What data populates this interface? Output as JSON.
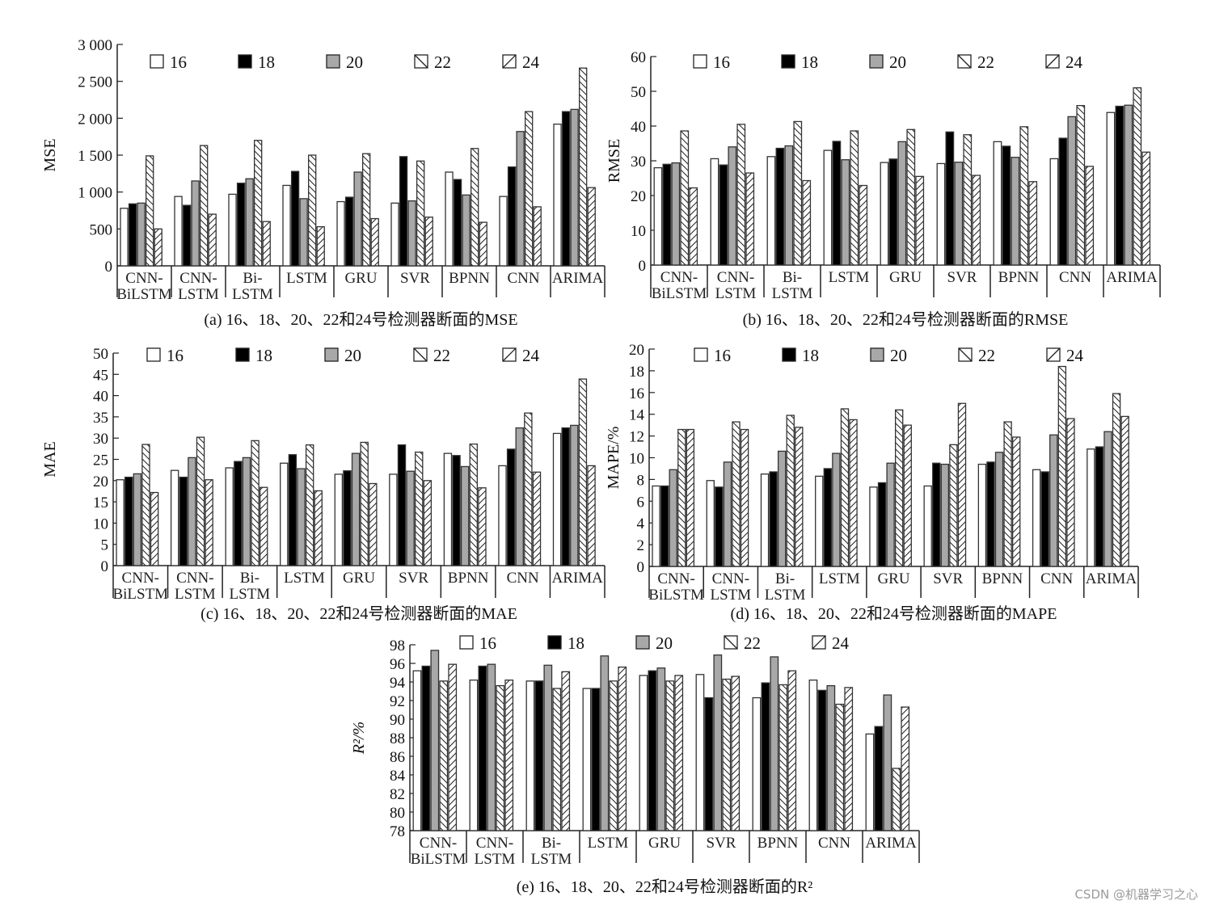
{
  "legend": [
    "16",
    "18",
    "20",
    "22",
    "24"
  ],
  "watermark": "CSDN @机器学习之心",
  "styles": {
    "fills": [
      "#ffffff",
      "#000000",
      "#a8a8a8",
      "hatch-back",
      "hatch-fwd"
    ],
    "stroke": "#333333"
  },
  "chart_data": [
    {
      "id": "a",
      "type": "bar",
      "title": "(a) 16、18、20、22和24号检测器断面的MSE",
      "ylabel": "MSE",
      "ylim": [
        0,
        3000
      ],
      "yticks": [
        0,
        500,
        1000,
        1500,
        2000,
        2500,
        3000
      ],
      "ytick_labels": [
        "0",
        "500",
        "1 000",
        "1 500",
        "2 000",
        "2 500",
        "3 000"
      ],
      "categories": [
        "CNN-\nBiLSTM",
        "CNN-\nLSTM",
        "Bi-\nLSTM",
        "LSTM",
        "GRU",
        "SVR",
        "BPNN",
        "CNN",
        "ARIMA"
      ],
      "series": [
        {
          "name": "16",
          "values": [
            780,
            940,
            970,
            1090,
            870,
            850,
            1270,
            940,
            1920
          ]
        },
        {
          "name": "18",
          "values": [
            840,
            820,
            1120,
            1280,
            930,
            1480,
            1170,
            1340,
            2090
          ]
        },
        {
          "name": "20",
          "values": [
            850,
            1150,
            1180,
            910,
            1270,
            880,
            960,
            1820,
            2120
          ]
        },
        {
          "name": "22",
          "values": [
            1490,
            1630,
            1700,
            1500,
            1520,
            1420,
            1590,
            2090,
            2680
          ]
        },
        {
          "name": "24",
          "values": [
            500,
            700,
            600,
            530,
            640,
            660,
            590,
            800,
            1060
          ]
        }
      ]
    },
    {
      "id": "b",
      "type": "bar",
      "title": "(b) 16、18、20、22和24号检测器断面的RMSE",
      "ylabel": "RMSE",
      "ylim": [
        0,
        60
      ],
      "yticks": [
        0,
        10,
        20,
        30,
        40,
        50,
        60
      ],
      "ytick_labels": [
        "0",
        "10",
        "20",
        "30",
        "40",
        "50",
        "60"
      ],
      "categories": [
        "CNN-\nBiLSTM",
        "CNN-\nLSTM",
        "Bi-\nLSTM",
        "LSTM",
        "GRU",
        "SVR",
        "BPNN",
        "CNN",
        "ARIMA"
      ],
      "series": [
        {
          "name": "16",
          "values": [
            28,
            30.6,
            31.2,
            33,
            29.5,
            29.2,
            35.5,
            30.6,
            43.9
          ]
        },
        {
          "name": "18",
          "values": [
            29,
            28.8,
            33.6,
            35.6,
            30.5,
            38.3,
            34.2,
            36.5,
            45.7
          ]
        },
        {
          "name": "20",
          "values": [
            29.4,
            34,
            34.3,
            30.3,
            35.5,
            29.6,
            31,
            42.7,
            46
          ]
        },
        {
          "name": "22",
          "values": [
            38.6,
            40.5,
            41.3,
            38.6,
            39,
            37.5,
            39.8,
            45.9,
            51
          ]
        },
        {
          "name": "24",
          "values": [
            22.2,
            26.5,
            24.3,
            22.9,
            25.5,
            25.8,
            24,
            28.4,
            32.5
          ]
        }
      ]
    },
    {
      "id": "c",
      "type": "bar",
      "title": "(c) 16、18、20、22和24号检测器断面的MAE",
      "ylabel": "MAE",
      "ylim": [
        0,
        50
      ],
      "yticks": [
        0,
        5,
        10,
        15,
        20,
        25,
        30,
        35,
        40,
        45,
        50
      ],
      "ytick_labels": [
        "0",
        "5",
        "10",
        "15",
        "20",
        "25",
        "30",
        "35",
        "40",
        "45",
        "50"
      ],
      "categories": [
        "CNN-\nBiLSTM",
        "CNN-\nLSTM",
        "Bi-\nLSTM",
        "LSTM",
        "GRU",
        "SVR",
        "BPNN",
        "CNN",
        "ARIMA"
      ],
      "series": [
        {
          "name": "16",
          "values": [
            20.2,
            22.4,
            23,
            24.1,
            21.5,
            21.5,
            26.4,
            23.5,
            31.1
          ]
        },
        {
          "name": "18",
          "values": [
            20.8,
            20.8,
            24.5,
            26.1,
            22.3,
            28.4,
            25.9,
            27.4,
            32.4
          ]
        },
        {
          "name": "20",
          "values": [
            21.6,
            25.4,
            25.4,
            22.8,
            26.4,
            22.2,
            23.3,
            32.4,
            33
          ]
        },
        {
          "name": "22",
          "values": [
            28.5,
            30.2,
            29.4,
            28.4,
            29,
            26.7,
            28.6,
            35.9,
            43.9
          ]
        },
        {
          "name": "24",
          "values": [
            17.2,
            20.2,
            18.4,
            17.6,
            19.3,
            20,
            18.3,
            22,
            23.5
          ]
        }
      ]
    },
    {
      "id": "d",
      "type": "bar",
      "title": "(d) 16、18、20、22和24号检测器断面的MAPE",
      "ylabel": "MAPE/%",
      "ylim": [
        0,
        20
      ],
      "yticks": [
        0,
        2,
        4,
        6,
        8,
        10,
        12,
        14,
        16,
        18,
        20
      ],
      "ytick_labels": [
        "0",
        "2",
        "4",
        "6",
        "8",
        "10",
        "12",
        "14",
        "16",
        "18",
        "20"
      ],
      "categories": [
        "CNN-\nBiLSTM",
        "CNN-\nLSTM",
        "Bi-\nLSTM",
        "LSTM",
        "GRU",
        "SVR",
        "BPNN",
        "CNN",
        "ARIMA"
      ],
      "series": [
        {
          "name": "16",
          "values": [
            7.4,
            7.9,
            8.5,
            8.3,
            7.3,
            7.4,
            9.4,
            8.9,
            10.8
          ]
        },
        {
          "name": "18",
          "values": [
            7.4,
            7.3,
            8.7,
            9,
            7.7,
            9.5,
            9.6,
            8.7,
            11
          ]
        },
        {
          "name": "20",
          "values": [
            8.9,
            9.6,
            10.6,
            10.4,
            9.5,
            9.4,
            10.5,
            12.1,
            12.4
          ]
        },
        {
          "name": "22",
          "values": [
            12.6,
            13.3,
            13.9,
            14.5,
            14.4,
            11.2,
            13.3,
            18.4,
            15.9
          ]
        },
        {
          "name": "24",
          "values": [
            12.6,
            12.6,
            12.8,
            13.5,
            13,
            15,
            11.9,
            13.6,
            13.8
          ]
        }
      ]
    },
    {
      "id": "e",
      "type": "bar",
      "title": "(e) 16、18、20、22和24号检测器断面的R²",
      "ylabel": "R²/%",
      "ylim": [
        78,
        98
      ],
      "yticks": [
        78,
        80,
        82,
        84,
        86,
        88,
        90,
        92,
        94,
        96,
        98
      ],
      "ytick_labels": [
        "78",
        "80",
        "82",
        "84",
        "86",
        "88",
        "90",
        "92",
        "94",
        "96",
        "98"
      ],
      "categories": [
        "CNN-\nBiLSTM",
        "CNN-\nLSTM",
        "Bi-\nLSTM",
        "LSTM",
        "GRU",
        "SVR",
        "BPNN",
        "CNN",
        "ARIMA"
      ],
      "series": [
        {
          "name": "16",
          "values": [
            95.2,
            94.2,
            94.1,
            93.3,
            94.7,
            94.8,
            92.3,
            94.2,
            88.4
          ]
        },
        {
          "name": "18",
          "values": [
            95.7,
            95.7,
            94.1,
            93.3,
            95.2,
            92.3,
            93.9,
            93.1,
            89.2
          ]
        },
        {
          "name": "20",
          "values": [
            97.4,
            95.9,
            95.8,
            96.8,
            95.5,
            96.9,
            96.7,
            93.6,
            92.6
          ]
        },
        {
          "name": "22",
          "values": [
            94.1,
            93.6,
            93.3,
            94.1,
            94.1,
            94.3,
            93.7,
            91.6,
            84.7
          ]
        },
        {
          "name": "24",
          "values": [
            95.9,
            94.2,
            95.1,
            95.6,
            94.7,
            94.6,
            95.2,
            93.4,
            91.3
          ]
        }
      ]
    }
  ]
}
